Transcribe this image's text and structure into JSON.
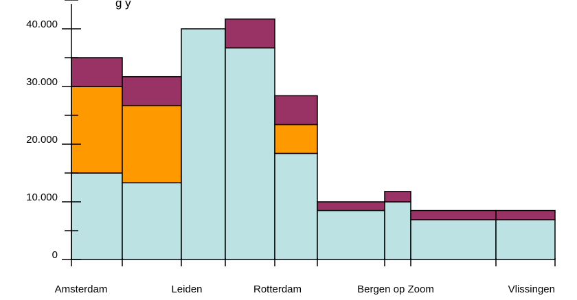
{
  "chart_data": {
    "type": "bar",
    "subtype": "stacked-variable-width",
    "title": "g      y",
    "xlabel": "",
    "ylabel": "",
    "ylim": [
      0,
      45000
    ],
    "y_ticks": [
      {
        "value": 0,
        "label": "0"
      },
      {
        "value": 10000,
        "label": "10.000"
      },
      {
        "value": 20000,
        "label": "20.000"
      },
      {
        "value": 30000,
        "label": "30.000"
      },
      {
        "value": 40000,
        "label": "40.000"
      }
    ],
    "x_labels": [
      "Amsterdam",
      "Leiden",
      "Rotterdam",
      "Bergen op Zoom",
      "Vlissingen"
    ],
    "colors": {
      "base": "#bde2e4",
      "middle": "#ff9900",
      "top": "#993366",
      "stroke": "#000000"
    },
    "bars": [
      {
        "width_units": 74,
        "values": [
          15000,
          15000,
          5000
        ]
      },
      {
        "width_units": 86,
        "values": [
          13300,
          13400,
          5000
        ]
      },
      {
        "width_units": 64,
        "values": [
          40000,
          0,
          0
        ]
      },
      {
        "width_units": 72,
        "values": [
          36700,
          0,
          5000
        ]
      },
      {
        "width_units": 62,
        "values": [
          18400,
          5000,
          5000
        ]
      },
      {
        "width_units": 98,
        "values": [
          8500,
          0,
          1500
        ]
      },
      {
        "width_units": 38,
        "values": [
          10000,
          0,
          1800
        ]
      },
      {
        "width_units": 124,
        "values": [
          6900,
          0,
          1600
        ]
      },
      {
        "width_units": 86,
        "values": [
          6900,
          0,
          1600
        ]
      }
    ]
  }
}
